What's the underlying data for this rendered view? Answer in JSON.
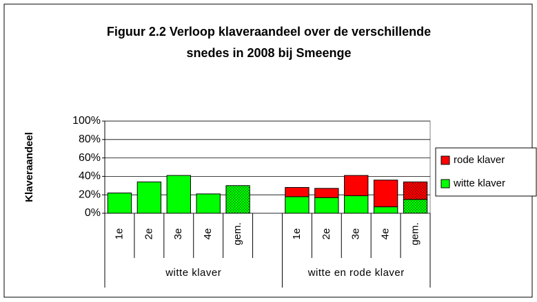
{
  "chart_data": {
    "type": "stacked_bar",
    "title": [
      "Figuur 2.2 Verloop klaveraandeel over de verschillende",
      "snedes in 2008 bij Smeenge"
    ],
    "y_label": "Klaveraandeel",
    "categories": [
      "1e",
      "2e",
      "3e",
      "4e",
      "gem.",
      null,
      "1e",
      "2e",
      "3e",
      "4e",
      "gem."
    ],
    "dotted": [
      false,
      false,
      false,
      false,
      true,
      false,
      false,
      false,
      false,
      false,
      true
    ],
    "groups": [
      {
        "label": "witte klaver",
        "span": 6
      },
      {
        "label": "witte en rode klaver",
        "span": 5
      }
    ],
    "series": [
      {
        "name": "witte klaver",
        "color": "#00ff00",
        "values": [
          22,
          34,
          41,
          21,
          30,
          null,
          18,
          17,
          19,
          7,
          15
        ]
      },
      {
        "name": "rode klaver",
        "color": "#ff0000",
        "values": [
          null,
          null,
          null,
          null,
          null,
          null,
          10,
          10,
          22,
          29,
          19
        ]
      }
    ],
    "legend_order": [
      1,
      0
    ],
    "ylim": [
      0,
      100
    ],
    "yticks": [
      {
        "value": 0,
        "label": "0%"
      },
      {
        "value": 20,
        "label": "20%"
      },
      {
        "value": 40,
        "label": "40%"
      },
      {
        "value": 60,
        "label": "60%"
      },
      {
        "value": 80,
        "label": "80%"
      },
      {
        "value": 100,
        "label": "100%"
      }
    ],
    "grid": true
  }
}
